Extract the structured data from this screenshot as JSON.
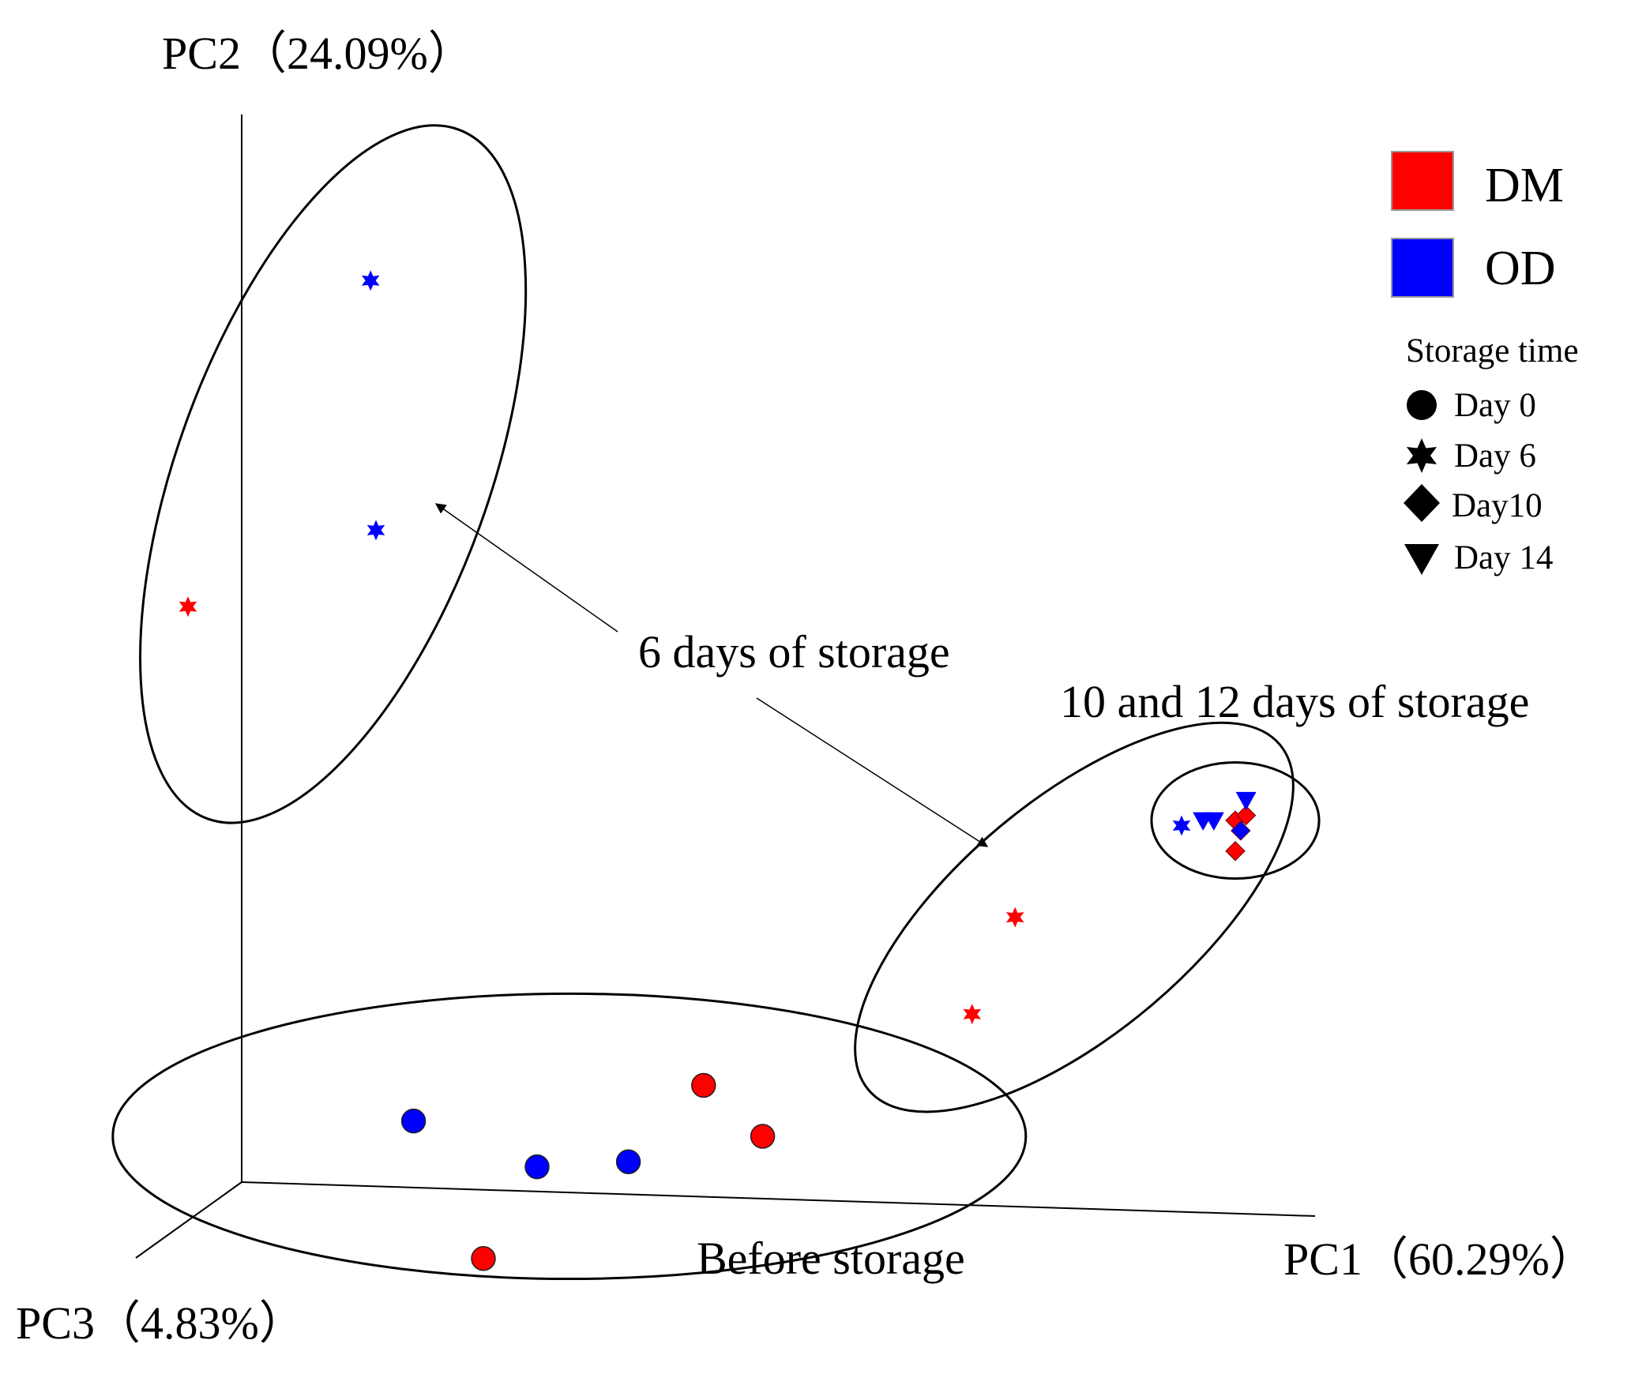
{
  "chart_data": {
    "type": "scatter",
    "projection": "3d",
    "axes": {
      "x": {
        "label": "PC1（60.29%）"
      },
      "y": {
        "label": "PC2（24.09%）"
      },
      "z": {
        "label": "PC3（4.83%）"
      }
    },
    "groups": {
      "DM": "#ff0000",
      "OD": "#0000ff"
    },
    "legend": {
      "position": "top-right",
      "group_items": [
        {
          "name": "DM",
          "color": "#ff0000"
        },
        {
          "name": "OD",
          "color": "#0000ff"
        }
      ],
      "title": "Storage time",
      "shape_items": [
        {
          "shape": "circle",
          "label": "Day 0"
        },
        {
          "shape": "star",
          "label": "Day 6"
        },
        {
          "shape": "diamond",
          "label": "Day10"
        },
        {
          "shape": "triangle-down",
          "label": "Day 14"
        }
      ]
    },
    "annotations": [
      {
        "id": "before",
        "text": "Before storage"
      },
      {
        "id": "six",
        "text": "6 days of storage"
      },
      {
        "id": "tentwelve",
        "text": "10 and 12 days of storage"
      }
    ],
    "points": [
      {
        "group": "OD",
        "day": 0,
        "shape": "circle",
        "proj": [
          0.16,
          0.06
        ]
      },
      {
        "group": "OD",
        "day": 0,
        "shape": "circle",
        "proj": [
          0.275,
          0.015
        ]
      },
      {
        "group": "OD",
        "day": 0,
        "shape": "circle",
        "proj": [
          0.36,
          0.02
        ]
      },
      {
        "group": "DM",
        "day": 0,
        "shape": "circle",
        "proj": [
          0.43,
          0.095
        ]
      },
      {
        "group": "DM",
        "day": 0,
        "shape": "circle",
        "proj": [
          0.485,
          0.045
        ]
      },
      {
        "group": "DM",
        "day": 0,
        "shape": "circle",
        "proj": [
          0.225,
          -0.075
        ]
      },
      {
        "group": "OD",
        "day": 6,
        "shape": "star",
        "proj": [
          0.12,
          0.885
        ]
      },
      {
        "group": "OD",
        "day": 6,
        "shape": "star",
        "proj": [
          0.125,
          0.64
        ]
      },
      {
        "group": "DM",
        "day": 6,
        "shape": "star",
        "proj": [
          -0.05,
          0.565
        ]
      },
      {
        "group": "DM",
        "day": 6,
        "shape": "star",
        "proj": [
          0.72,
          0.26
        ]
      },
      {
        "group": "DM",
        "day": 6,
        "shape": "star",
        "proj": [
          0.68,
          0.165
        ]
      },
      {
        "group": "OD",
        "day": 6,
        "shape": "star",
        "proj": [
          0.875,
          0.35
        ]
      },
      {
        "group": "OD",
        "day": 14,
        "shape": "triangle-down",
        "proj": [
          0.895,
          0.355
        ]
      },
      {
        "group": "OD",
        "day": 14,
        "shape": "triangle-down",
        "proj": [
          0.905,
          0.355
        ]
      },
      {
        "group": "DM",
        "day": 10,
        "shape": "diamond",
        "proj": [
          0.925,
          0.355
        ]
      },
      {
        "group": "DM",
        "day": 10,
        "shape": "diamond",
        "proj": [
          0.935,
          0.36
        ]
      },
      {
        "group": "OD",
        "day": 14,
        "shape": "triangle-down",
        "proj": [
          0.935,
          0.375
        ]
      },
      {
        "group": "OD",
        "day": 10,
        "shape": "diamond",
        "proj": [
          0.93,
          0.345
        ]
      },
      {
        "group": "DM",
        "day": 10,
        "shape": "diamond",
        "proj": [
          0.925,
          0.325
        ]
      }
    ],
    "clusters": [
      {
        "name": "Day 6 group (upper left)",
        "center": [
          0.085,
          0.695
        ],
        "rx": 0.145,
        "ry": 0.36
      },
      {
        "name": "Day 6 group (right)",
        "center": [
          0.775,
          0.26
        ],
        "rx": 0.25,
        "ry": 0.115
      },
      {
        "name": "Day 10-14 group",
        "center": [
          0.925,
          0.355
        ],
        "rx": 0.078,
        "ry": 0.057
      },
      {
        "name": "Day 0 group",
        "center": [
          0.305,
          0.045
        ],
        "rx": 0.425,
        "ry": 0.14
      }
    ]
  }
}
